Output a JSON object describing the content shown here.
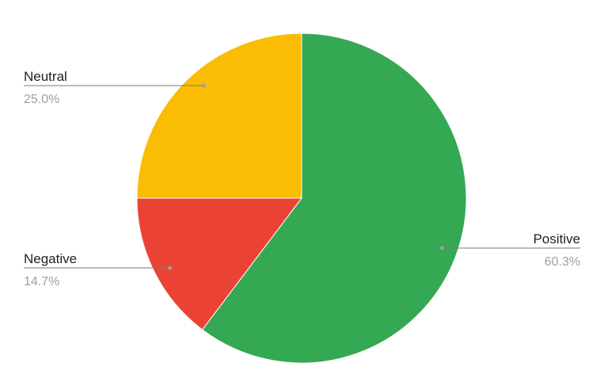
{
  "chart_data": {
    "type": "pie",
    "title": "",
    "slices": [
      {
        "label": "Positive",
        "value": 60.3,
        "value_label": "60.3%",
        "color": "#34a853"
      },
      {
        "label": "Negative",
        "value": 14.7,
        "value_label": "14.7%",
        "color": "#ea4335"
      },
      {
        "label": "Neutral",
        "value": 25.0,
        "value_label": "25.0%",
        "color": "#fbbc04"
      }
    ],
    "start_angle": "12 o'clock",
    "direction": "clockwise",
    "legend": "none",
    "labels": "outside with leader lines"
  }
}
